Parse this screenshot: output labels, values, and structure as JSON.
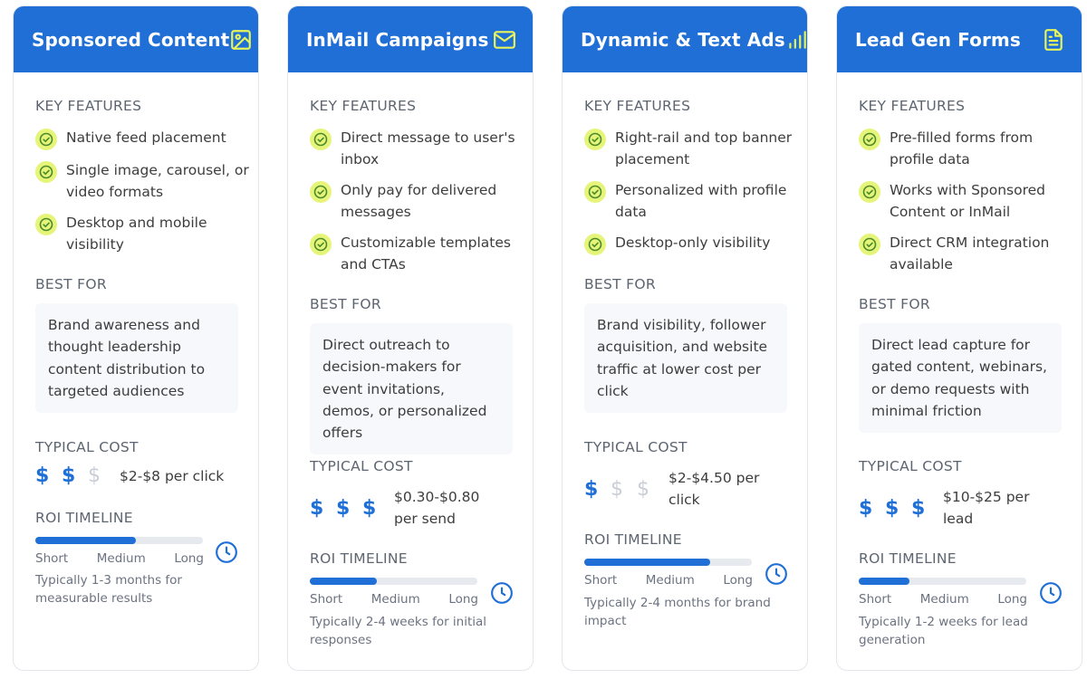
{
  "labels": {
    "key_features": "KEY FEATURES",
    "best_for": "BEST FOR",
    "typical_cost": "TYPICAL COST",
    "roi_timeline": "ROI TIMELINE",
    "short": "Short",
    "medium": "Medium",
    "long": "Long"
  },
  "colors": {
    "header": "#1f6fd6",
    "accent_check": "#e6f57a",
    "dollar_on": "#1f6fd6",
    "dollar_off": "#c9ced6"
  },
  "cards": [
    {
      "title": "Sponsored Content",
      "icon": "image-icon",
      "features": [
        "Native feed placement",
        "Single image, carousel, or video formats",
        "Desktop and mobile visibility"
      ],
      "best_for": "Brand awareness and thought leadership content distribution to targeted audiences",
      "cost_level": 2,
      "cost": "$2-$8 per click",
      "roi_fraction": 0.6,
      "roi_note": "Typically 1-3 months for measurable results"
    },
    {
      "title": "InMail Campaigns",
      "icon": "mail-icon",
      "features": [
        "Direct message to user's inbox",
        "Only pay for delivered messages",
        "Customizable templates and CTAs"
      ],
      "best_for": "Direct outreach to decision-makers for event invitations, demos, or personalized offers",
      "cost_level": 3,
      "cost": "$0.30-$0.80 per send",
      "roi_fraction": 0.4,
      "roi_note": "Typically 2-4 weeks for initial responses"
    },
    {
      "title": "Dynamic & Text Ads",
      "icon": "bar-chart-icon",
      "features": [
        "Right-rail and top banner placement",
        "Personalized with profile data",
        "Desktop-only visibility"
      ],
      "best_for": "Brand visibility, follower acquisition, and website traffic at lower cost per click",
      "cost_level": 1,
      "cost": "$2-$4.50 per click",
      "roi_fraction": 0.75,
      "roi_note": "Typically 2-4 months for brand impact"
    },
    {
      "title": "Lead Gen Forms",
      "icon": "document-icon",
      "features": [
        "Pre-filled forms from profile data",
        "Works with Sponsored Content or InMail",
        "Direct CRM integration available"
      ],
      "best_for": "Direct lead capture for gated content, webinars, or demo requests with minimal friction",
      "cost_level": 3,
      "cost": "$10-$25 per lead",
      "roi_fraction": 0.3,
      "roi_note": "Typically 1-2 weeks for lead generation"
    }
  ]
}
